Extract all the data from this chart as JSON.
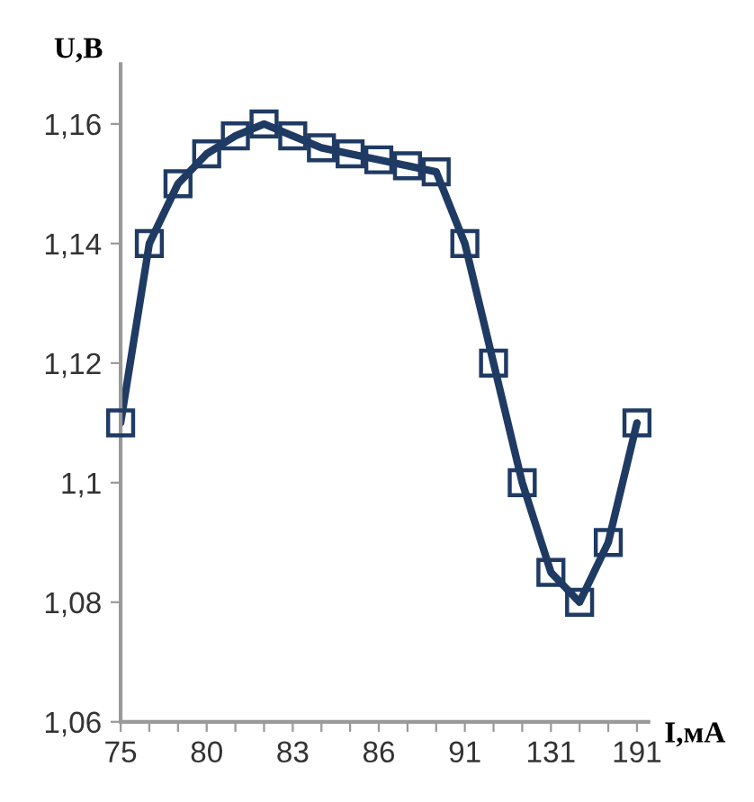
{
  "chart_data": {
    "type": "line",
    "xlabel": "I,мА",
    "ylabel": "U,В",
    "categories": [
      "75",
      null,
      null,
      "80",
      null,
      null,
      "83",
      null,
      null,
      "86",
      null,
      null,
      "91",
      null,
      null,
      "131",
      null,
      null,
      "191"
    ],
    "series": [
      {
        "color": "#1f3b64",
        "values": [
          1.11,
          1.14,
          1.15,
          1.155,
          1.158,
          1.16,
          1.158,
          1.156,
          1.155,
          1.154,
          1.153,
          1.152,
          1.14,
          1.12,
          1.1,
          1.085,
          1.08,
          1.09,
          1.11
        ]
      }
    ],
    "ylim": [
      1.06,
      1.17
    ],
    "yticks": [
      {
        "value": 1.06,
        "label": "1,06"
      },
      {
        "value": 1.08,
        "label": "1,08"
      },
      {
        "value": 1.1,
        "label": "1,1"
      },
      {
        "value": 1.12,
        "label": "1,12"
      },
      {
        "value": 1.14,
        "label": "1,14"
      },
      {
        "value": 1.16,
        "label": "1,16"
      }
    ],
    "marker": "square",
    "line_style": "solid",
    "grid": false,
    "legend": false
  }
}
